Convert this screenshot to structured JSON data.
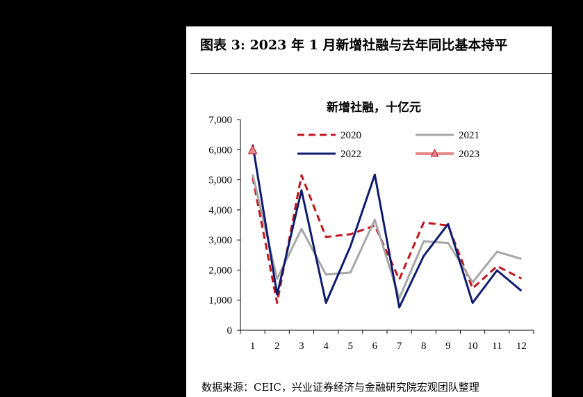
{
  "figure": {
    "title": "图表 3:  2023 年 1 月新增社融与去年同比基本持平",
    "source": "数据来源：CEIC，兴业证券经济与金融研究院宏观团队整理"
  },
  "chart_data": {
    "type": "line",
    "title": "新增社融，十亿元",
    "xlabel": "",
    "ylabel": "",
    "categories": [
      "1",
      "2",
      "3",
      "4",
      "5",
      "6",
      "7",
      "8",
      "9",
      "10",
      "11",
      "12"
    ],
    "ylim": [
      0,
      7000
    ],
    "yticks": [
      0,
      1000,
      2000,
      3000,
      4000,
      5000,
      6000,
      7000
    ],
    "ytick_labels": [
      "0",
      "1,000",
      "2,000",
      "3,000",
      "4,000",
      "5,000",
      "6,000",
      "7,000"
    ],
    "grid": false,
    "legend_position": "top",
    "series": [
      {
        "name": "2020",
        "color": "#c0141c",
        "style": "dashed",
        "marker": "none",
        "values": [
          5080,
          910,
          5150,
          3100,
          3190,
          3480,
          1690,
          3580,
          3480,
          1390,
          2130,
          1720
        ]
      },
      {
        "name": "2021",
        "color": "#a6a6a6",
        "style": "solid",
        "marker": "none",
        "values": [
          5180,
          1710,
          3370,
          1850,
          1920,
          3670,
          1060,
          2960,
          2900,
          1590,
          2610,
          2370
        ]
      },
      {
        "name": "2022",
        "color": "#0e1a6e",
        "style": "solid",
        "marker": "none",
        "values": [
          6170,
          1190,
          4650,
          910,
          2790,
          5170,
          760,
          2470,
          3530,
          910,
          1990,
          1310
        ]
      },
      {
        "name": "2023",
        "color": "#e8898c",
        "style": "solid",
        "marker": "triangle",
        "values": [
          5980,
          null,
          null,
          null,
          null,
          null,
          null,
          null,
          null,
          null,
          null,
          null
        ]
      }
    ]
  }
}
